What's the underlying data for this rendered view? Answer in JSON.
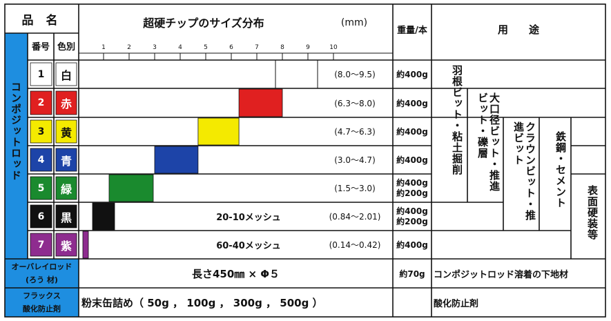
{
  "header": {
    "product_name": "品 名",
    "chart_title": "超硬チップのサイズ分布",
    "unit": "(mm)",
    "weight_header": "重量/本",
    "use_header": "用　　途",
    "no_header": "番号",
    "color_header": "色別"
  },
  "scale_ticks": [
    "1",
    "2",
    "3",
    "4",
    "5",
    "6",
    "7",
    "8",
    "9",
    "10"
  ],
  "side_label": "コンポジットロッド",
  "rods": [
    {
      "no": "1",
      "color": "白",
      "range": "(8.0～9.5)",
      "weight": "約400g",
      "swatch": "#ffffff",
      "textcolor": "#111111"
    },
    {
      "no": "2",
      "color": "赤",
      "range": "(6.3～8.0)",
      "weight": "約400g",
      "swatch": "#e02020",
      "textcolor": "#ffffff"
    },
    {
      "no": "3",
      "color": "黄",
      "range": "(4.7～6.3)",
      "weight": "約400g",
      "swatch": "#f4ea00",
      "textcolor": "#111111"
    },
    {
      "no": "4",
      "color": "青",
      "range": "(3.0～4.7)",
      "weight": "約400g",
      "swatch": "#1d44a8",
      "textcolor": "#ffffff"
    },
    {
      "no": "5",
      "color": "緑",
      "range": "(1.5～3.0)",
      "weight": "約400g",
      "weight2": "約200g",
      "swatch": "#1a8a2e",
      "textcolor": "#ffffff"
    },
    {
      "no": "6",
      "color": "黒",
      "mesh": "20-10メッシュ",
      "range": "(0.84～2.01)",
      "weight": "約400g",
      "weight2": "約200g",
      "swatch": "#111111",
      "textcolor": "#ffffff"
    },
    {
      "no": "7",
      "color": "紫",
      "mesh": "60-40メッシュ",
      "range": "(0.14～0.42)",
      "weight": "約400g",
      "swatch": "#8e2c8f",
      "textcolor": "#ffffff"
    }
  ],
  "uses": {
    "u1": "羽根ビット・粘土掘削",
    "u2": "大口径ビット・推進ビット・礫層",
    "u3": "クラウンビット・推進ビット",
    "u4": "鉄鋼・セメント",
    "u5": "表面硬装等"
  },
  "overlay": {
    "name": "オーバレイロッド",
    "sub": "(ろう 材)",
    "spec": "長さ450㎜ × Φ５",
    "weight": "約70g",
    "use": "コンポジットロッド溶着の下地材"
  },
  "flux": {
    "name": "フラックス",
    "sub": "酸化防止剤",
    "spec": "粉末缶詰め（ 50g ， 100g ， 300g ， 500g ）",
    "use": "酸化防止剤"
  },
  "colors": {
    "blue_band": "#1e8ee0",
    "ruler_tint": "#ffffff"
  }
}
